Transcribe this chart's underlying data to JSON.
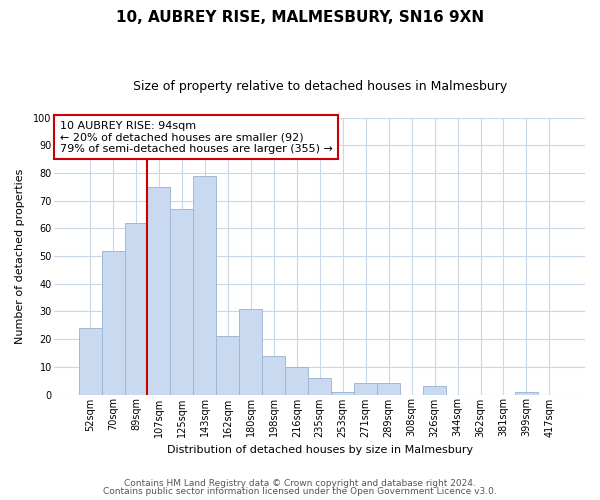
{
  "title": "10, AUBREY RISE, MALMESBURY, SN16 9XN",
  "subtitle": "Size of property relative to detached houses in Malmesbury",
  "xlabel": "Distribution of detached houses by size in Malmesbury",
  "ylabel": "Number of detached properties",
  "bin_labels": [
    "52sqm",
    "70sqm",
    "89sqm",
    "107sqm",
    "125sqm",
    "143sqm",
    "162sqm",
    "180sqm",
    "198sqm",
    "216sqm",
    "235sqm",
    "253sqm",
    "271sqm",
    "289sqm",
    "308sqm",
    "326sqm",
    "344sqm",
    "362sqm",
    "381sqm",
    "399sqm",
    "417sqm"
  ],
  "bar_heights": [
    24,
    52,
    62,
    75,
    67,
    79,
    21,
    31,
    14,
    10,
    6,
    1,
    4,
    4,
    0,
    3,
    0,
    0,
    0,
    1,
    0
  ],
  "bar_color": "#c9d9f0",
  "bar_edge_color": "#a0b8d8",
  "vline_x": 2.5,
  "vline_color": "#cc0000",
  "annotation_box_text": "10 AUBREY RISE: 94sqm\n← 20% of detached houses are smaller (92)\n79% of semi-detached houses are larger (355) →",
  "annotation_box_edge_color": "#cc0000",
  "ylim": [
    0,
    100
  ],
  "yticks": [
    0,
    10,
    20,
    30,
    40,
    50,
    60,
    70,
    80,
    90,
    100
  ],
  "footer_line1": "Contains HM Land Registry data © Crown copyright and database right 2024.",
  "footer_line2": "Contains public sector information licensed under the Open Government Licence v3.0.",
  "background_color": "#ffffff",
  "grid_color": "#c8d8e8",
  "title_fontsize": 11,
  "subtitle_fontsize": 9,
  "axis_label_fontsize": 8,
  "tick_fontsize": 7,
  "footer_fontsize": 6.5
}
